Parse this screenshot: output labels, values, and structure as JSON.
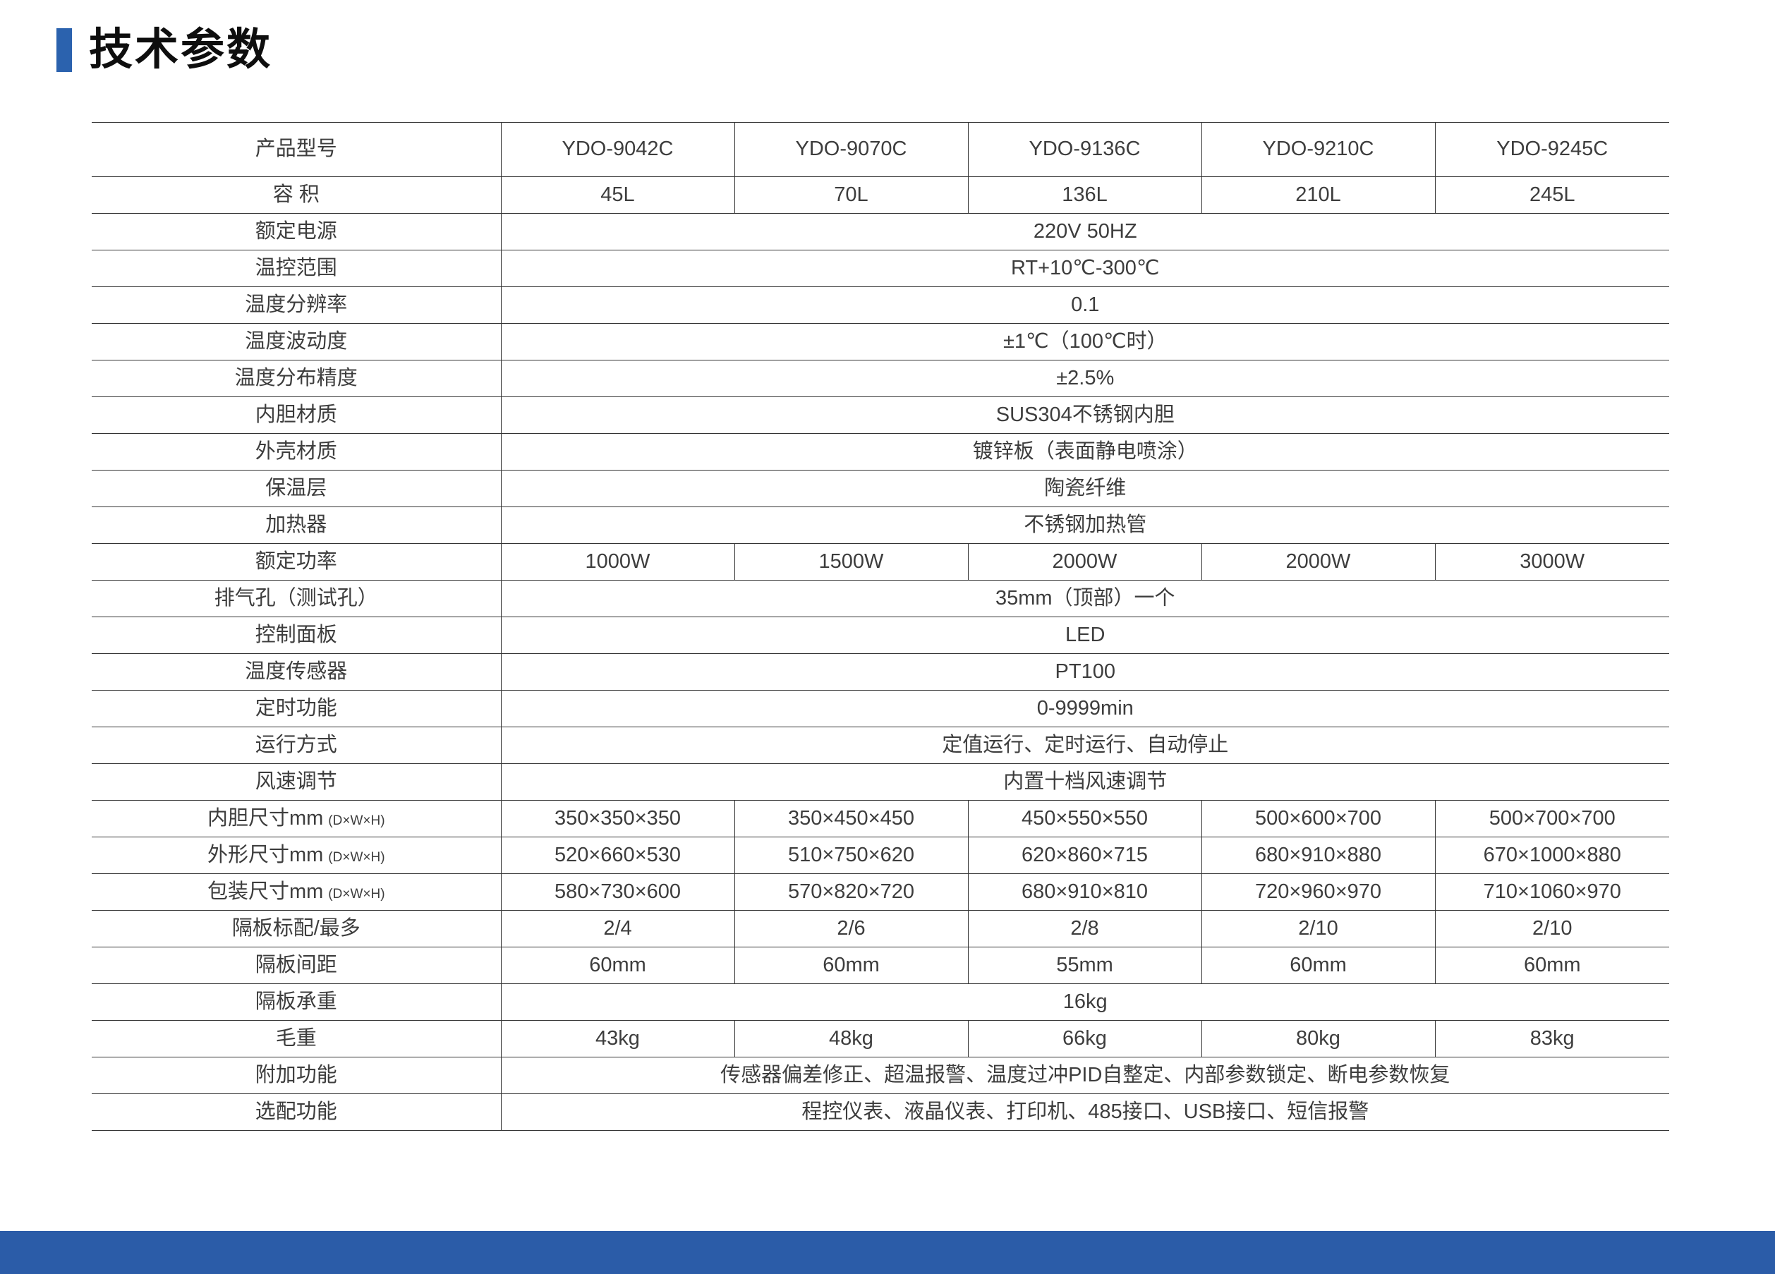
{
  "page": {
    "title": "技术参数",
    "accent_color": "#2B62AE",
    "footer_color": "#2B5CA8"
  },
  "table": {
    "rows": [
      {
        "label": "产品型号",
        "cells": [
          "YDO-9042C",
          "YDO-9070C",
          "YDO-9136C",
          "YDO-9210C",
          "YDO-9245C"
        ]
      },
      {
        "label": "容 积",
        "cells": [
          "45L",
          "70L",
          "136L",
          "210L",
          "245L"
        ]
      },
      {
        "label": "额定电源",
        "span": "220V 50HZ"
      },
      {
        "label": "温控范围",
        "span": "RT+10℃-300℃"
      },
      {
        "label": "温度分辨率",
        "span": "0.1"
      },
      {
        "label": "温度波动度",
        "span": "±1℃（100℃时）"
      },
      {
        "label": "温度分布精度",
        "span": "±2.5%"
      },
      {
        "label": "内胆材质",
        "span": "SUS304不锈钢内胆"
      },
      {
        "label": "外壳材质",
        "span": "镀锌板（表面静电喷涂）"
      },
      {
        "label": "保温层",
        "span": "陶瓷纤维"
      },
      {
        "label": "加热器",
        "span": "不锈钢加热管"
      },
      {
        "label": "额定功率",
        "cells": [
          "1000W",
          "1500W",
          "2000W",
          "2000W",
          "3000W"
        ]
      },
      {
        "label": "排气孔（测试孔）",
        "span": "35mm（顶部）一个"
      },
      {
        "label": "控制面板",
        "span": "LED"
      },
      {
        "label": "温度传感器",
        "span": "PT100"
      },
      {
        "label": "定时功能",
        "span": "0-9999min"
      },
      {
        "label": "运行方式",
        "span": "定值运行、定时运行、自动停止"
      },
      {
        "label": "风速调节",
        "span": "内置十档风速调节"
      },
      {
        "label": "内胆尺寸mm",
        "sublabel": "(D×W×H)",
        "cells": [
          "350×350×350",
          "350×450×450",
          "450×550×550",
          "500×600×700",
          "500×700×700"
        ]
      },
      {
        "label": "外形尺寸mm",
        "sublabel": "(D×W×H)",
        "cells": [
          "520×660×530",
          "510×750×620",
          "620×860×715",
          "680×910×880",
          "670×1000×880"
        ]
      },
      {
        "label": "包装尺寸mm",
        "sublabel": "(D×W×H)",
        "cells": [
          "580×730×600",
          "570×820×720",
          "680×910×810",
          "720×960×970",
          "710×1060×970"
        ]
      },
      {
        "label": "隔板标配/最多",
        "cells": [
          "2/4",
          "2/6",
          "2/8",
          "2/10",
          "2/10"
        ]
      },
      {
        "label": "隔板间距",
        "cells": [
          "60mm",
          "60mm",
          "55mm",
          "60mm",
          "60mm"
        ]
      },
      {
        "label": "隔板承重",
        "span": "16kg"
      },
      {
        "label": "毛重",
        "cells": [
          "43kg",
          "48kg",
          "66kg",
          "80kg",
          "83kg"
        ]
      },
      {
        "label": "附加功能",
        "span": "传感器偏差修正、超温报警、温度过冲PID自整定、内部参数锁定、断电参数恢复"
      },
      {
        "label": "选配功能",
        "span": "程控仪表、液晶仪表、打印机、485接口、USB接口、短信报警"
      }
    ]
  }
}
